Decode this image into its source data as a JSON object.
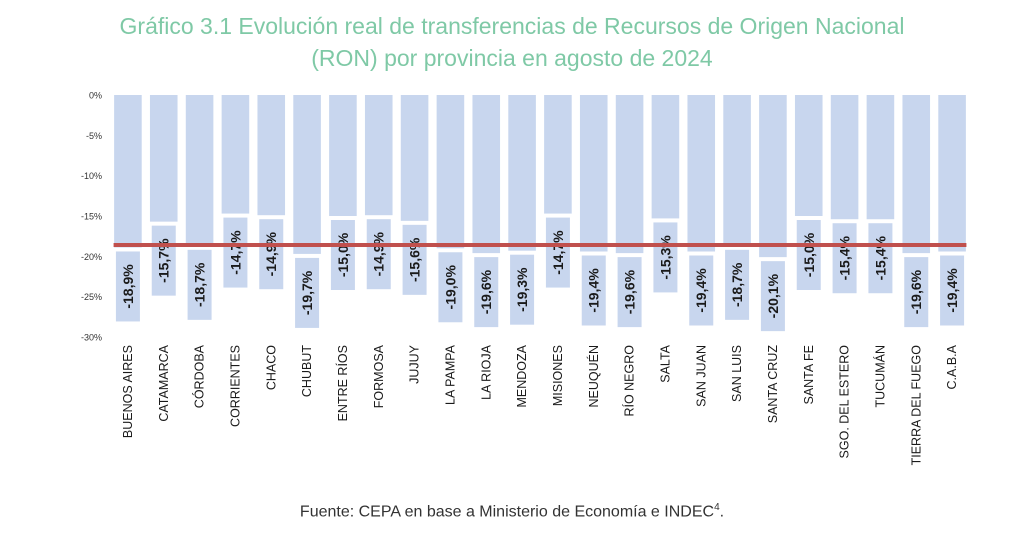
{
  "title_line1": "Gráfico 3.1 Evolución real de transferencias de Recursos de Origen Nacional",
  "title_line2": "(RON) por provincia en agosto de 2024",
  "source_text": "Fuente: CEPA en base a Ministerio de Economía e INDEC",
  "source_sup": "4",
  "source_tail": ".",
  "colors": {
    "bar": "#c8d6ee",
    "average_line": "#c0504d",
    "title": "#7fc9a6",
    "label_text": "#1a1a1a"
  },
  "chart_data": {
    "type": "bar",
    "title": "Gráfico 3.1 Evolución real de transferencias de Recursos de Origen Nacional (RON) por provincia en agosto de 2024",
    "xlabel": "",
    "ylabel": "",
    "ylim": [
      -30,
      0
    ],
    "yticks": [
      "0%",
      "-5%",
      "-10%",
      "-15%",
      "-20%",
      "-25%",
      "-30%"
    ],
    "ytick_values": [
      0,
      -5,
      -10,
      -15,
      -20,
      -25,
      -30
    ],
    "grid": false,
    "categories": [
      "BUENOS AIRES",
      "CATAMARCA",
      "CÓRDOBA",
      "CORRIENTES",
      "CHACO",
      "CHUBUT",
      "ENTRE RÍOS",
      "FORMOSA",
      "JUJUY",
      "LA PAMPA",
      "LA RIOJA",
      "MENDOZA",
      "MISIONES",
      "NEUQUÉN",
      "RÍO NEGRO",
      "SALTA",
      "SAN JUAN",
      "SAN LUIS",
      "SANTA CRUZ",
      "SANTA FE",
      "SGO. DEL ESTERO",
      "TUCUMÁN",
      "TIERRA DEL FUEGO",
      "C.A.B.A"
    ],
    "values": [
      -18.9,
      -15.7,
      -18.7,
      -14.7,
      -14.9,
      -19.7,
      -15.0,
      -14.9,
      -15.6,
      -19.0,
      -19.6,
      -19.3,
      -14.7,
      -19.4,
      -19.6,
      -15.3,
      -19.4,
      -18.7,
      -20.1,
      -15.0,
      -15.4,
      -15.4,
      -19.6,
      -19.4
    ],
    "data_labels": [
      "-18,9%",
      "-15,7%",
      "-18,7%",
      "-14,7%",
      "-14,9%",
      "-19,7%",
      "-15,0%",
      "-14,9%",
      "-15,6%",
      "-19,0%",
      "-19,6%",
      "-19,3%",
      "-14,7%",
      "-19,4%",
      "-19,6%",
      "-15,3%",
      "-19,4%",
      "-18,7%",
      "-20,1%",
      "-15,0%",
      "-15,4%",
      "-15,4%",
      "-19,6%",
      "-19,4%"
    ],
    "average_line_value": -18.6
  }
}
